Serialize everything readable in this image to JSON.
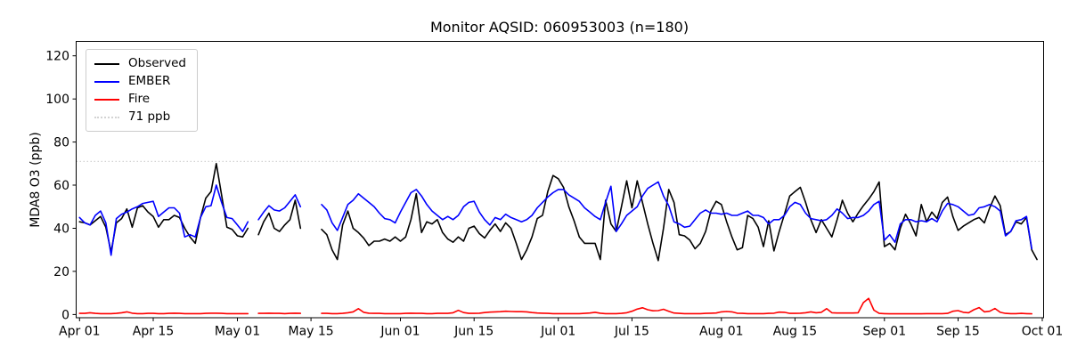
{
  "figure": {
    "title": "Monitor AQSID: 060953003 (n=180)",
    "ylabel": "MDA8 O3 (ppb)"
  },
  "chart_data": {
    "type": "line",
    "title": "Monitor AQSID: 060953003 (n=180)",
    "xlabel": "",
    "ylabel": "MDA8 O3 (ppb)",
    "ylim": [
      -1.5,
      126.7
    ],
    "grid": false,
    "legend_position": "upper left",
    "x_unit": "days since Apr 01, daily values Apr 01 - Sep 30",
    "x_ticks": [
      {
        "day": 0,
        "label": "Apr 01"
      },
      {
        "day": 14,
        "label": "Apr 15"
      },
      {
        "day": 30,
        "label": "May 01"
      },
      {
        "day": 44,
        "label": "May 15"
      },
      {
        "day": 61,
        "label": "Jun 01"
      },
      {
        "day": 75,
        "label": "Jun 15"
      },
      {
        "day": 91,
        "label": "Jul 01"
      },
      {
        "day": 105,
        "label": "Jul 15"
      },
      {
        "day": 122,
        "label": "Aug 01"
      },
      {
        "day": 136,
        "label": "Aug 15"
      },
      {
        "day": 153,
        "label": "Sep 01"
      },
      {
        "day": 167,
        "label": "Sep 15"
      },
      {
        "day": 183,
        "label": "Oct 01"
      }
    ],
    "y_ticks": [
      0,
      20,
      40,
      60,
      80,
      100,
      120
    ],
    "threshold": {
      "value": 71,
      "label": "71 ppb",
      "color": "#d3d3d3",
      "style": "dotted"
    },
    "series": [
      {
        "name": "Observed",
        "color": "#000000",
        "values": [
          43,
          42.5,
          41.5,
          43.5,
          45.5,
          40.5,
          29,
          42.5,
          44.5,
          49,
          40.5,
          49.5,
          50.5,
          47.5,
          45.5,
          40.5,
          44,
          44,
          46,
          45,
          40,
          36,
          33,
          45,
          54,
          57,
          70,
          55.5,
          40.5,
          39.5,
          36.5,
          36,
          40,
          null,
          37,
          43,
          47,
          40,
          38.5,
          41.5,
          44,
          53,
          40,
          null,
          null,
          null,
          39.5,
          37,
          30,
          25.5,
          41.5,
          48,
          40,
          38,
          35.5,
          32,
          34,
          34,
          35,
          34,
          36,
          34,
          36,
          44,
          56,
          38,
          43,
          42,
          44,
          38,
          35,
          33.5,
          36,
          34,
          40,
          41,
          37.5,
          35.5,
          39,
          42,
          38.5,
          42.5,
          40,
          33,
          25.5,
          30,
          36,
          44.5,
          46,
          57,
          64.5,
          63,
          59,
          50,
          43.5,
          36,
          33,
          33,
          33,
          25.5,
          53,
          42,
          38.5,
          50,
          62,
          49.5,
          62,
          52,
          42,
          33,
          25,
          40,
          58,
          52,
          37,
          36.5,
          34.5,
          30.5,
          33,
          38.5,
          48,
          52.5,
          51,
          43,
          36,
          30,
          31,
          46,
          44.5,
          40.5,
          31.5,
          43.5,
          29.5,
          38.5,
          46.5,
          55,
          57,
          59,
          52,
          44,
          38,
          44,
          40,
          36,
          44,
          53,
          47,
          43,
          47,
          50.5,
          53.5,
          57,
          61.5,
          31.5,
          33,
          30,
          40,
          46.5,
          42,
          36.5,
          51,
          43,
          47.5,
          44.5,
          52,
          54.5,
          45.5,
          39,
          41,
          42.5,
          44,
          45,
          42.5,
          49.5,
          55,
          50.5,
          37,
          38.5,
          43,
          42,
          45,
          30,
          25.5
        ]
      },
      {
        "name": "EMBER",
        "color": "#0000ff",
        "values": [
          45,
          42.5,
          41.5,
          46,
          48,
          42.5,
          27.5,
          44.5,
          46.5,
          47.5,
          49,
          50,
          51.5,
          52,
          52.5,
          45.5,
          47.5,
          49.5,
          49.5,
          47,
          36,
          37,
          36,
          45,
          50,
          50.5,
          60,
          52,
          45,
          44.5,
          41.5,
          38.5,
          43,
          null,
          44,
          47.5,
          50.5,
          48.5,
          48,
          49.5,
          52.5,
          55.5,
          50,
          null,
          null,
          null,
          51,
          48.5,
          42.5,
          39,
          45,
          51,
          53,
          56,
          54,
          52,
          50,
          47,
          44.5,
          44,
          42.5,
          47.5,
          52,
          56.5,
          58,
          55,
          51,
          48,
          46,
          44,
          45.5,
          44,
          46,
          50,
          52,
          52.5,
          47.5,
          44,
          41.5,
          45,
          44,
          46.5,
          45,
          44,
          43,
          44,
          46,
          49.5,
          52,
          54.5,
          56.5,
          58,
          58,
          55.5,
          54,
          52.5,
          49.5,
          47.5,
          45.5,
          44,
          52,
          59.5,
          38.5,
          42,
          46,
          48,
          50,
          55,
          58.5,
          60,
          61.5,
          55,
          50.5,
          43,
          42,
          40.5,
          41,
          44,
          47,
          48.5,
          47,
          47,
          46.5,
          47,
          46,
          46,
          47,
          48,
          46,
          46,
          45,
          42,
          44,
          44,
          46,
          50,
          52,
          51,
          47,
          44.5,
          44,
          43.5,
          44,
          46,
          49,
          47,
          44.5,
          45,
          45,
          46,
          48,
          51,
          52.5,
          34.5,
          37,
          33.5,
          42,
          44,
          44,
          43,
          43.5,
          43,
          44.5,
          43,
          48,
          51.5,
          51,
          50,
          48,
          46,
          46.5,
          49.5,
          50,
          51,
          50,
          48,
          36.5,
          38.5,
          43.5,
          44,
          45.5,
          30.5,
          null
        ]
      },
      {
        "name": "Fire",
        "color": "#ff0000",
        "values": [
          0.5,
          0.5,
          0.8,
          0.5,
          0.4,
          0.4,
          0.4,
          0.5,
          0.8,
          1.2,
          0.6,
          0.4,
          0.4,
          0.5,
          0.5,
          0.4,
          0.4,
          0.5,
          0.6,
          0.5,
          0.4,
          0.4,
          0.4,
          0.4,
          0.5,
          0.6,
          0.6,
          0.5,
          0.4,
          0.4,
          0.4,
          0.4,
          0.4,
          null,
          0.5,
          0.5,
          0.6,
          0.5,
          0.5,
          0.4,
          0.5,
          0.6,
          0.5,
          null,
          null,
          null,
          0.5,
          0.5,
          0.4,
          0.4,
          0.5,
          0.8,
          1.2,
          2.7,
          1.0,
          0.6,
          0.5,
          0.5,
          0.4,
          0.4,
          0.4,
          0.4,
          0.5,
          0.6,
          0.5,
          0.5,
          0.4,
          0.4,
          0.5,
          0.5,
          0.5,
          0.8,
          1.9,
          0.9,
          0.5,
          0.5,
          0.6,
          0.9,
          1.1,
          1.2,
          1.3,
          1.5,
          1.4,
          1.3,
          1.3,
          1.2,
          0.9,
          0.7,
          0.6,
          0.5,
          0.4,
          0.4,
          0.4,
          0.4,
          0.4,
          0.4,
          0.5,
          0.7,
          1.0,
          0.6,
          0.4,
          0.4,
          0.4,
          0.5,
          0.8,
          1.5,
          2.5,
          3.1,
          2.2,
          1.7,
          1.8,
          2.4,
          1.5,
          0.7,
          0.5,
          0.4,
          0.4,
          0.4,
          0.4,
          0.5,
          0.6,
          0.7,
          1.2,
          1.4,
          1.2,
          0.6,
          0.5,
          0.4,
          0.4,
          0.4,
          0.4,
          0.5,
          0.6,
          1.1,
          1.0,
          0.5,
          0.5,
          0.6,
          0.8,
          1.2,
          0.8,
          1.0,
          2.7,
          0.8,
          0.7,
          0.7,
          0.7,
          0.7,
          0.8,
          5.5,
          7.5,
          2.0,
          0.5,
          0.4,
          0.3,
          0.3,
          0.3,
          0.3,
          0.3,
          0.3,
          0.3,
          0.4,
          0.4,
          0.4,
          0.4,
          0.5,
          1.5,
          1.8,
          1.0,
          0.8,
          2.2,
          3.2,
          1.2,
          1.5,
          2.8,
          1.0,
          0.5,
          0.4,
          0.4,
          0.5,
          0.4,
          0.3,
          null
        ]
      }
    ]
  }
}
